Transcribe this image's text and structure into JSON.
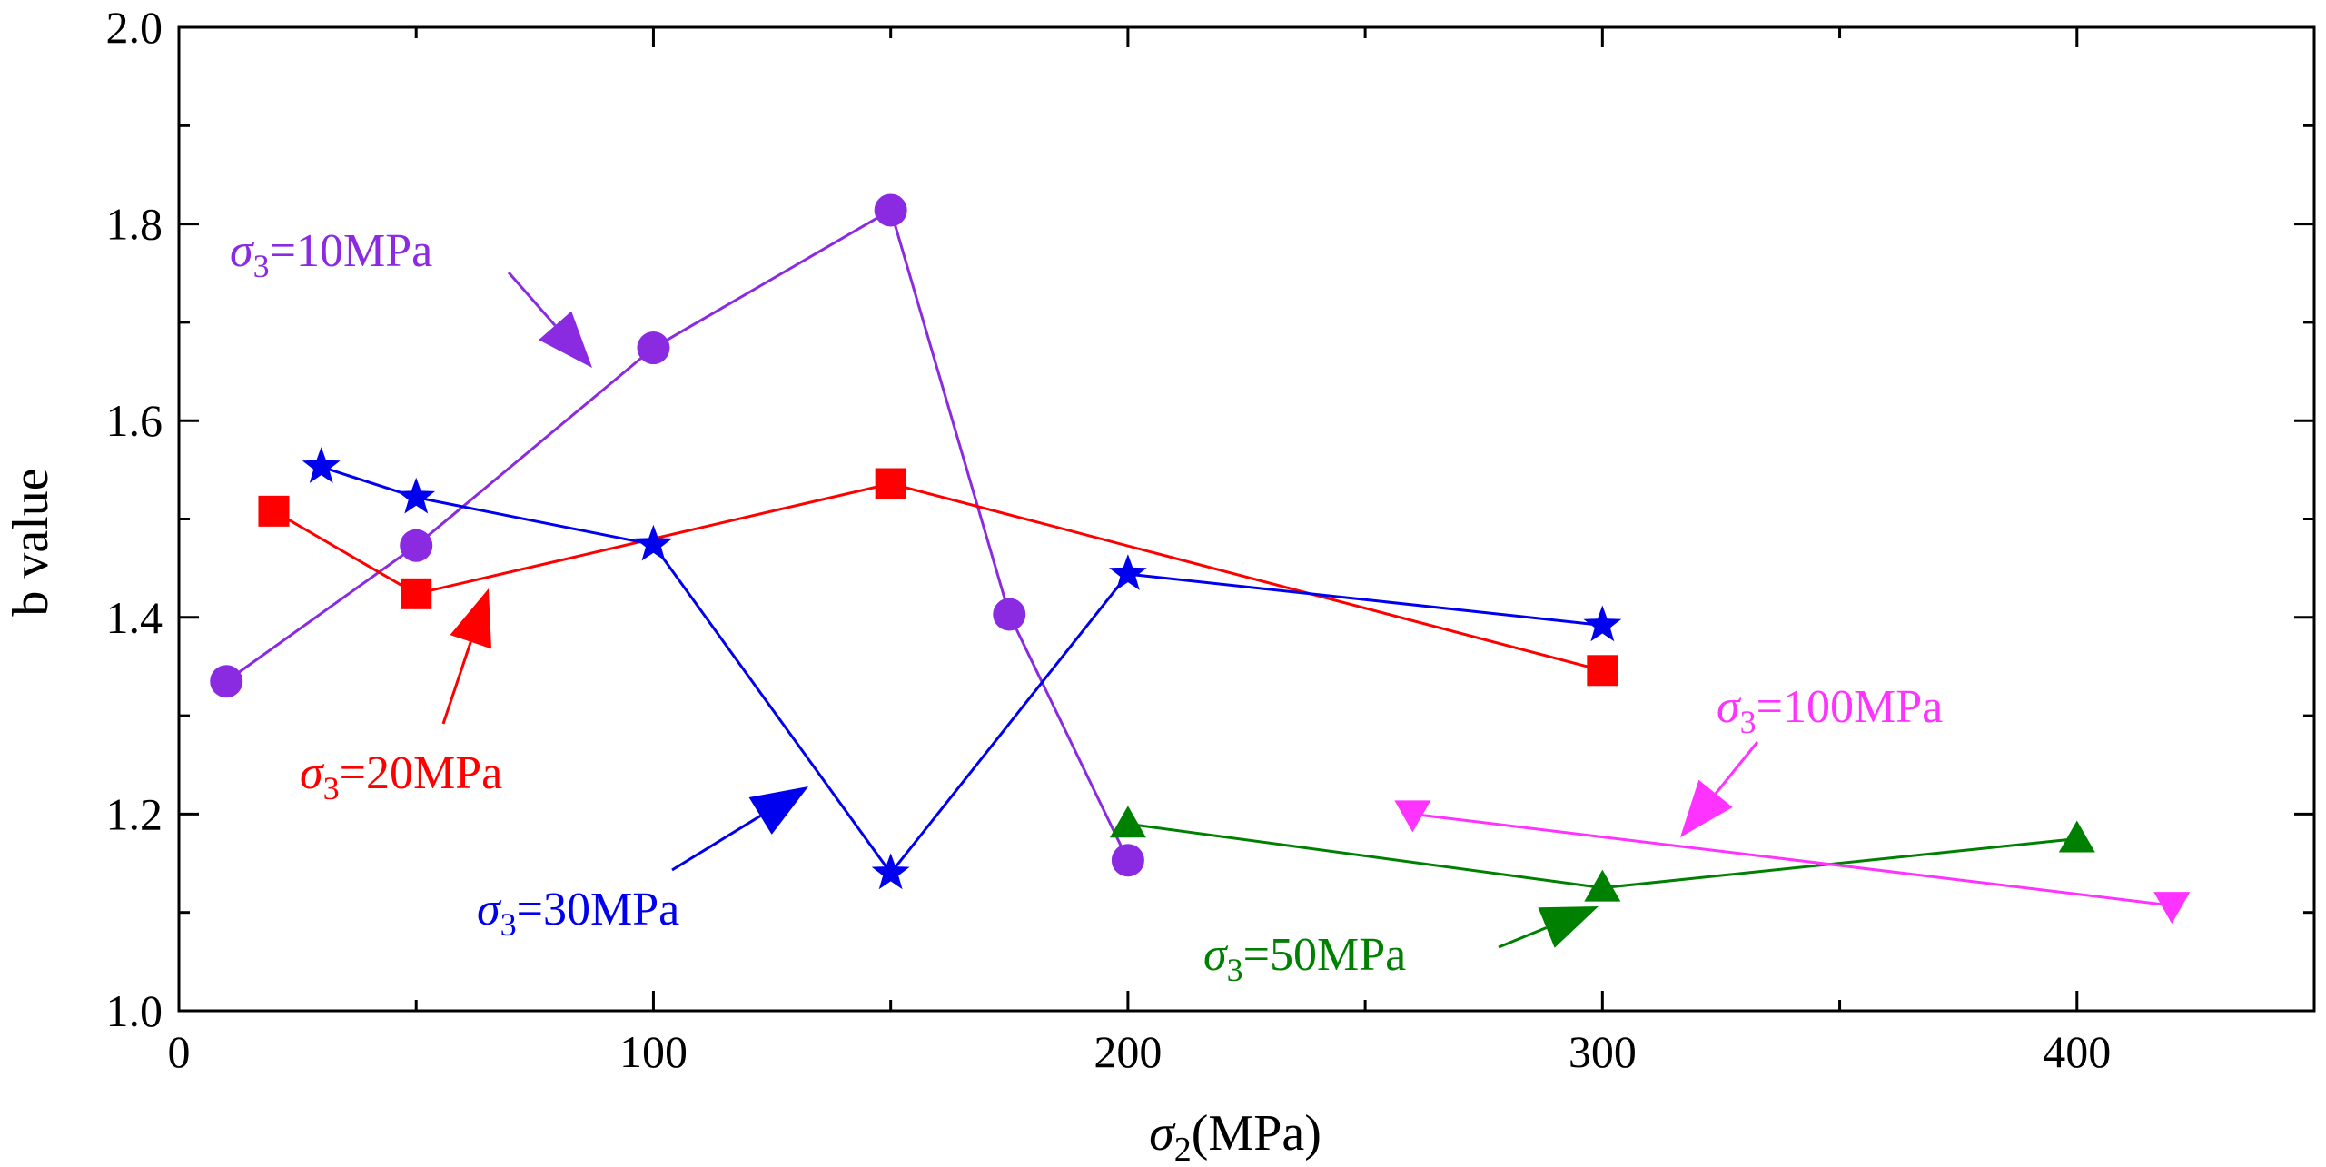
{
  "chart_data": {
    "type": "line",
    "title": "",
    "xlabel": {
      "symbol": "σ",
      "sub": "2",
      "unit": "(MPa)"
    },
    "ylabel": "b value",
    "xlim": [
      0,
      450
    ],
    "ylim": [
      1.0,
      2.0
    ],
    "xticks": [
      0,
      100,
      200,
      300,
      400
    ],
    "xtick_labels": [
      "0",
      "100",
      "200",
      "300",
      "400"
    ],
    "yticks": [
      1.0,
      1.2,
      1.4,
      1.6,
      1.8,
      2.0
    ],
    "ytick_labels": [
      "1.0",
      "1.2",
      "1.4",
      "1.6",
      "1.8",
      "2.0"
    ],
    "grid": false,
    "series": [
      {
        "name": "σ3=10MPa",
        "color": "#8a2be2",
        "marker": "circle",
        "x": [
          10,
          50,
          100,
          150,
          175,
          200
        ],
        "y": [
          1.335,
          1.473,
          1.674,
          1.814,
          1.403,
          1.153
        ]
      },
      {
        "name": "σ3=20MPa",
        "color": "#ff0000",
        "marker": "square",
        "x": [
          20,
          50,
          150,
          300
        ],
        "y": [
          1.508,
          1.424,
          1.536,
          1.346
        ]
      },
      {
        "name": "σ3=30MPa",
        "color": "#0000ee",
        "marker": "star",
        "x": [
          30,
          50,
          100,
          150,
          200,
          300
        ],
        "y": [
          1.553,
          1.522,
          1.474,
          1.14,
          1.444,
          1.392
        ]
      },
      {
        "name": "σ3=50MPa",
        "color": "#008000",
        "marker": "triangle-up",
        "x": [
          200,
          300,
          400
        ],
        "y": [
          1.19,
          1.125,
          1.175
        ]
      },
      {
        "name": "σ3=100MPa",
        "color": "#ff33ff",
        "marker": "triangle-down",
        "x": [
          260,
          420
        ],
        "y": [
          1.2,
          1.107
        ]
      }
    ],
    "annotations": [
      {
        "label": {
          "sym": "σ",
          "sub": "3",
          "rest": "=10MPa"
        },
        "color": "#8a2be2",
        "series": 0
      },
      {
        "label": {
          "sym": "σ",
          "sub": "3",
          "rest": "=20MPa"
        },
        "color": "#ff0000",
        "series": 1
      },
      {
        "label": {
          "sym": "σ",
          "sub": "3",
          "rest": "=30MPa"
        },
        "color": "#0000ee",
        "series": 2
      },
      {
        "label": {
          "sym": "σ",
          "sub": "3",
          "rest": "=50MPa"
        },
        "color": "#008000",
        "series": 3
      },
      {
        "label": {
          "sym": "σ",
          "sub": "3",
          "rest": "=100MPa"
        },
        "color": "#ff33ff",
        "series": 4
      }
    ]
  }
}
